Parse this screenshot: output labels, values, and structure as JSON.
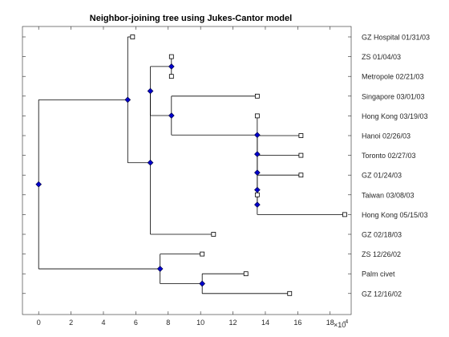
{
  "title": "Neighbor-joining tree using Jukes-Cantor model",
  "axis": {
    "x_tick_labels": [
      "0",
      "2",
      "4",
      "6",
      "8",
      "10",
      "12",
      "14",
      "16",
      "18"
    ],
    "x_exponent_base": "×10",
    "x_exponent_power": "-4"
  },
  "leaves": [
    "GZ Hospital 01/31/03",
    "ZS 01/04/03",
    "Metropole 02/21/03",
    "Singapore 03/01/03",
    "Hong Kong 03/19/03",
    "Hanoi 02/26/03",
    "Toronto 02/27/03",
    "GZ 01/24/03",
    "Taiwan 03/08/03",
    "Hong Kong 05/15/03",
    "GZ 02/18/03",
    "ZS 12/26/02",
    "Palm civet",
    "GZ 12/16/02"
  ],
  "chart_data": {
    "type": "dendrogram",
    "title": "Neighbor-joining tree using Jukes-Cantor model",
    "x_axis_scale": "1e-4",
    "xlim": [
      -1,
      19.3
    ],
    "x_ticks": [
      0,
      2,
      4,
      6,
      8,
      10,
      12,
      14,
      16,
      18
    ],
    "leaves": [
      {
        "name": "GZ Hospital 01/31/03",
        "x": 5.8
      },
      {
        "name": "ZS 01/04/03",
        "x": 8.2
      },
      {
        "name": "Metropole 02/21/03",
        "x": 8.2
      },
      {
        "name": "Singapore 03/01/03",
        "x": 13.5
      },
      {
        "name": "Hong Kong 03/19/03",
        "x": 13.5
      },
      {
        "name": "Hanoi 02/26/03",
        "x": 16.2
      },
      {
        "name": "Toronto 02/27/03",
        "x": 16.2
      },
      {
        "name": "GZ 01/24/03",
        "x": 16.2
      },
      {
        "name": "Taiwan 03/08/03",
        "x": 13.5
      },
      {
        "name": "Hong Kong 05/15/03",
        "x": 18.9
      },
      {
        "name": "GZ 02/18/03",
        "x": 10.8
      },
      {
        "name": "ZS 12/26/02",
        "x": 10.1
      },
      {
        "name": "Palm civet",
        "x": 12.8
      },
      {
        "name": "GZ 12/16/02",
        "x": 15.5
      }
    ],
    "nodes": [
      {
        "id": "root",
        "x": 0.0,
        "children": [
          "A",
          "K"
        ]
      },
      {
        "id": "A",
        "x": 5.5,
        "children": [
          "leaf0",
          "B"
        ]
      },
      {
        "id": "B",
        "x": 6.9,
        "children": [
          "C",
          "leaf10"
        ]
      },
      {
        "id": "C",
        "x": 6.9,
        "children": [
          "D",
          "E"
        ]
      },
      {
        "id": "D",
        "x": 8.2,
        "children": [
          "leaf1",
          "leaf2"
        ]
      },
      {
        "id": "E",
        "x": 8.2,
        "children": [
          "leaf3",
          "F"
        ]
      },
      {
        "id": "F",
        "x": 13.5,
        "children": [
          "leaf4",
          "G"
        ]
      },
      {
        "id": "G",
        "x": 13.5,
        "children": [
          "leaf5",
          "H"
        ]
      },
      {
        "id": "H",
        "x": 13.5,
        "children": [
          "leaf6",
          "I"
        ]
      },
      {
        "id": "I",
        "x": 13.5,
        "children": [
          "leaf7",
          "J"
        ]
      },
      {
        "id": "J",
        "x": 13.5,
        "children": [
          "leaf8",
          "leaf9"
        ]
      },
      {
        "id": "K",
        "x": 7.5,
        "children": [
          "leaf11",
          "L"
        ]
      },
      {
        "id": "L",
        "x": 10.1,
        "children": [
          "leaf12",
          "leaf13"
        ]
      }
    ],
    "colors": {
      "internal_node": "#0000cc",
      "line": "#000000",
      "axis": "#262626"
    }
  }
}
